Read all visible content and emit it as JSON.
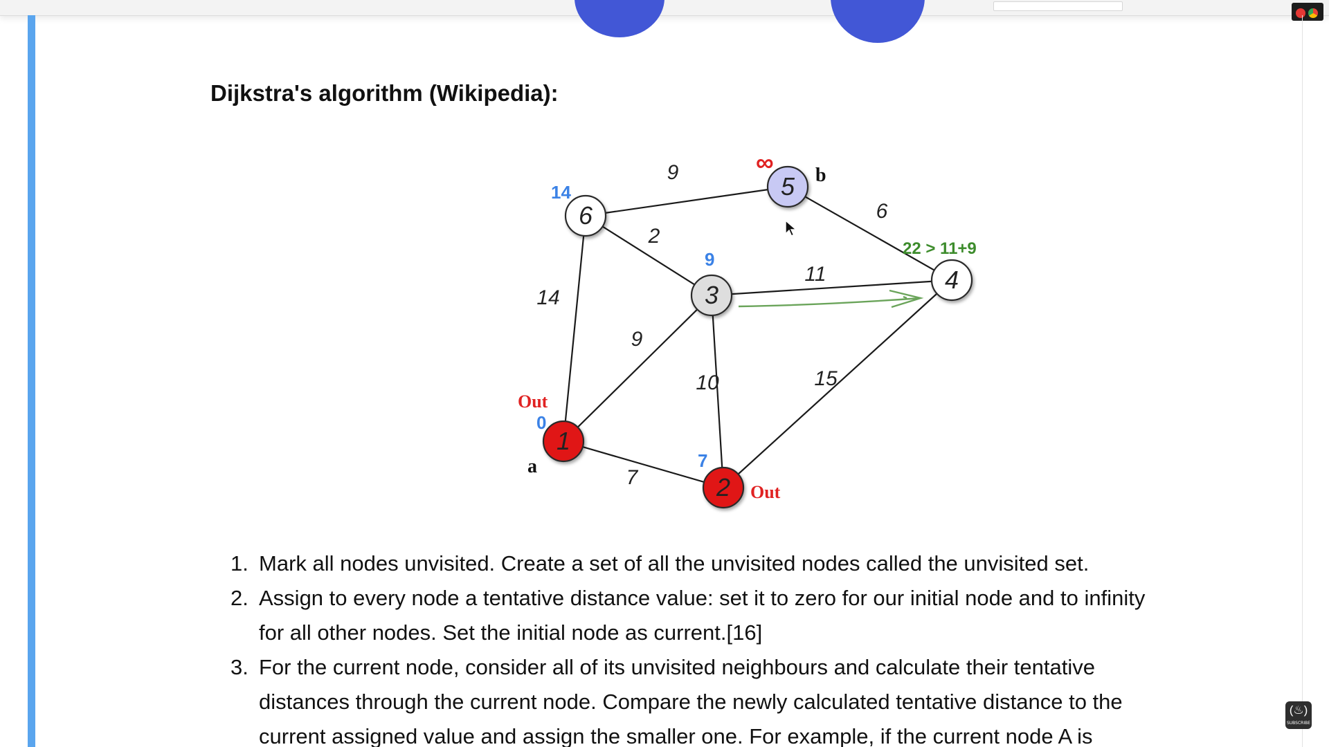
{
  "heading": "Dijkstra's algorithm (Wikipedia):",
  "graph": {
    "nodes": [
      {
        "id": "1",
        "label": "1"
      },
      {
        "id": "2",
        "label": "2"
      },
      {
        "id": "3",
        "label": "3"
      },
      {
        "id": "4",
        "label": "4"
      },
      {
        "id": "5",
        "label": "5"
      },
      {
        "id": "6",
        "label": "6"
      }
    ],
    "edges": [
      {
        "from": "6",
        "to": "5",
        "weight": "9"
      },
      {
        "from": "6",
        "to": "3",
        "weight": "2"
      },
      {
        "from": "6",
        "to": "1",
        "weight": "14"
      },
      {
        "from": "5",
        "to": "4",
        "weight": "6"
      },
      {
        "from": "3",
        "to": "4",
        "weight": "11"
      },
      {
        "from": "3",
        "to": "1",
        "weight": "9"
      },
      {
        "from": "3",
        "to": "2",
        "weight": "10"
      },
      {
        "from": "2",
        "to": "4",
        "weight": "15"
      },
      {
        "from": "1",
        "to": "2",
        "weight": "7"
      }
    ],
    "distances": {
      "6": "14",
      "5": "∞",
      "3": "9",
      "1": "0",
      "2": "7"
    },
    "out_labels": {
      "1": "Out",
      "2": "Out"
    },
    "node_names": {
      "1": "a",
      "5": "b"
    },
    "comparison": "22 > 11+9",
    "colors": {
      "visited": "#e01414",
      "current": "#dedede",
      "active": "#c8c9f4",
      "unvisited": "#ffffff",
      "distance": "#3b82e6",
      "out": "#e02222",
      "comparison": "#3d8c2c"
    }
  },
  "steps": [
    {
      "num": "1.",
      "lines": [
        "Mark all nodes unvisited. Create a set of all the unvisited nodes called the unvisited set."
      ]
    },
    {
      "num": "2.",
      "lines": [
        "Assign to every node a tentative distance value: set it to zero for our initial node and to infinity",
        "for all other nodes. Set the initial node as current.[16]"
      ]
    },
    {
      "num": "3.",
      "lines": [
        "For the current node, consider all of its unvisited neighbours and calculate their tentative",
        "distances through the current node. Compare the newly calculated tentative distance to the",
        "current assigned value and assign the smaller one. For example, if the current node A is"
      ]
    }
  ],
  "badge": {
    "label": "SUBSCRIBE",
    "icon": "freecodecamp-icon"
  }
}
